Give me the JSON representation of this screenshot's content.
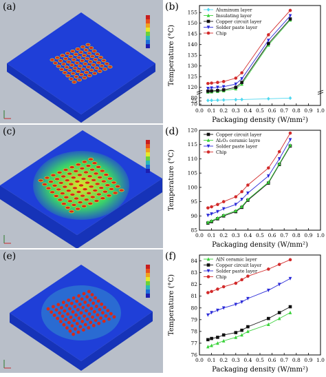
{
  "panels": {
    "a": "(a)",
    "b": "(b)",
    "c": "(c)",
    "d": "(d)",
    "e": "(e)",
    "f": "(f)"
  },
  "sim_colors": {
    "substrate_top": "#1f3fd8",
    "substrate_side": "#1633b8",
    "hot": "#d52a1a",
    "warm": "#e0e22a",
    "mid": "#3ad26a",
    "background": "#b9bfc9"
  },
  "chart_data": [
    {
      "type": "line",
      "panel": "(b)",
      "xlabel": "Packaging density (W/mm²)",
      "ylabel": "Temperature (°C)",
      "xlim": [
        0.0,
        1.0
      ],
      "xticks": [
        "0.0",
        "0.1",
        "0.2",
        "0.3",
        "0.4",
        "0.5",
        "0.6",
        "0.7",
        "0.8",
        "0.9",
        "1.0"
      ],
      "y_break": true,
      "yticks_upper": [
        "120",
        "125",
        "130",
        "135",
        "140",
        "145",
        "150",
        "155"
      ],
      "yticks_lower": [
        "70",
        "75",
        "80"
      ],
      "x": [
        0.07,
        0.1,
        0.15,
        0.2,
        0.3,
        0.35,
        0.57,
        0.75
      ],
      "series": [
        {
          "name": "Aluminum layer",
          "color": "#4fd8f0",
          "marker": "diamond",
          "values": [
            75.8,
            76.0,
            76.3,
            76.6,
            77.0,
            77.3,
            78.5,
            79.5
          ]
        },
        {
          "name": "Insulating layer",
          "color": "#3ad23a",
          "marker": "triangle",
          "values": [
            117.8,
            117.9,
            118.1,
            118.4,
            119.3,
            121.5,
            139.8,
            151.5
          ]
        },
        {
          "name": "Copper circuit layer",
          "color": "#111111",
          "marker": "square",
          "values": [
            118.2,
            118.3,
            118.5,
            118.8,
            120.0,
            122.3,
            140.5,
            152.0
          ]
        },
        {
          "name": "Solder paste layer",
          "color": "#2a2ad8",
          "marker": "triangle-down",
          "values": [
            119.5,
            119.7,
            120.0,
            120.3,
            121.5,
            124.0,
            142.0,
            153.5
          ]
        },
        {
          "name": "Chip",
          "color": "#d22a2a",
          "marker": "circle",
          "values": [
            121.8,
            122.0,
            122.3,
            122.7,
            124.3,
            126.8,
            144.6,
            156.0
          ]
        }
      ]
    },
    {
      "type": "line",
      "panel": "(d)",
      "xlabel": "Packaging density (W/mm²)",
      "ylabel": "Temperature (°C)",
      "xlim": [
        0.0,
        1.0
      ],
      "ylim": [
        85,
        120
      ],
      "xticks": [
        "0.0",
        "0.1",
        "0.2",
        "0.3",
        "0.4",
        "0.5",
        "0.6",
        "0.7",
        "0.8",
        "0.9",
        "1.0"
      ],
      "yticks": [
        "85",
        "90",
        "95",
        "100",
        "105",
        "110",
        "115",
        "120"
      ],
      "x": [
        0.07,
        0.1,
        0.15,
        0.2,
        0.3,
        0.35,
        0.4,
        0.57,
        0.66,
        0.75
      ],
      "series": [
        {
          "name": "Copper circuit layer",
          "color": "#111111",
          "marker": "square",
          "values": [
            87.5,
            88.0,
            89.0,
            90.0,
            91.5,
            93.0,
            95.5,
            101.5,
            108.0,
            114.5
          ]
        },
        {
          "name": "Al₂O₃ ceramic layre",
          "color": "#3ad23a",
          "marker": "triangle",
          "values": [
            87.8,
            88.3,
            89.3,
            90.3,
            91.8,
            93.3,
            95.8,
            101.8,
            108.3,
            114.8
          ]
        },
        {
          "name": "Solder paste layer",
          "color": "#2a2ad8",
          "marker": "triangle-down",
          "values": [
            90.2,
            90.7,
            91.5,
            92.5,
            94.0,
            95.8,
            98.0,
            104.0,
            110.0,
            116.7
          ]
        },
        {
          "name": "Chip",
          "color": "#d22a2a",
          "marker": "circle",
          "values": [
            92.8,
            93.2,
            94.0,
            95.0,
            96.7,
            98.5,
            100.8,
            106.8,
            112.5,
            119.0
          ]
        }
      ]
    },
    {
      "type": "line",
      "panel": "(f)",
      "xlabel": "Packaging density (W/mm²)",
      "ylabel": "Temperature (°C)",
      "xlim": [
        0.0,
        1.0
      ],
      "ylim": [
        76,
        84.5
      ],
      "xticks": [
        "0.0",
        "0.1",
        "0.2",
        "0.3",
        "0.4",
        "0.5",
        "0.6",
        "0.7",
        "0.8",
        "0.9",
        "1.0"
      ],
      "yticks": [
        "76",
        "77",
        "78",
        "79",
        "80",
        "81",
        "82",
        "83",
        "84"
      ],
      "x": [
        0.07,
        0.1,
        0.15,
        0.2,
        0.3,
        0.35,
        0.4,
        0.57,
        0.66,
        0.75
      ],
      "series": [
        {
          "name": "AlN ceramic layer",
          "color": "#3ad23a",
          "marker": "triangle",
          "values": [
            76.7,
            76.8,
            77.0,
            77.2,
            77.5,
            77.7,
            78.0,
            78.6,
            79.1,
            79.6
          ]
        },
        {
          "name": "Copper circuit layer",
          "color": "#111111",
          "marker": "square",
          "values": [
            77.3,
            77.4,
            77.5,
            77.7,
            77.9,
            78.1,
            78.4,
            79.1,
            79.6,
            80.1
          ]
        },
        {
          "name": "Solder paste layer",
          "color": "#2a2ad8",
          "marker": "triangle-down",
          "values": [
            79.4,
            79.6,
            79.8,
            80.0,
            80.3,
            80.5,
            80.8,
            81.5,
            82.0,
            82.5
          ]
        },
        {
          "name": "Chip",
          "color": "#d22a2a",
          "marker": "circle",
          "values": [
            81.3,
            81.4,
            81.6,
            81.8,
            82.1,
            82.4,
            82.7,
            83.3,
            83.7,
            84.1
          ]
        }
      ]
    }
  ]
}
